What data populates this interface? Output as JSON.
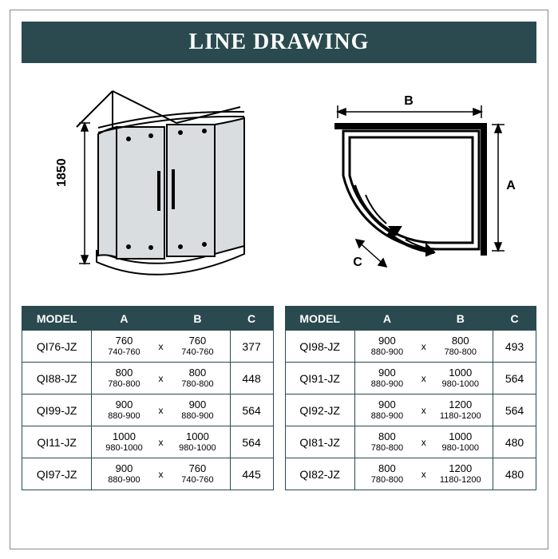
{
  "title": "LINE DRAWING",
  "title_bg": "#2a4a4f",
  "title_color": "#ffffff",
  "title_fontsize": 28,
  "header_bg": "#2a4a4f",
  "header_color": "#ffffff",
  "border_color": "#2a4a4f",
  "height_label": "1850",
  "plan_labels": {
    "A": "A",
    "B": "B",
    "C": "C"
  },
  "columns": [
    "MODEL",
    "A",
    "B",
    "C"
  ],
  "table_left": [
    {
      "model": "QI76-JZ",
      "a_main": "760",
      "a_range": "740-760",
      "b_main": "760",
      "b_range": "740-760",
      "c": "377"
    },
    {
      "model": "QI88-JZ",
      "a_main": "800",
      "a_range": "780-800",
      "b_main": "800",
      "b_range": "780-800",
      "c": "448"
    },
    {
      "model": "QI99-JZ",
      "a_main": "900",
      "a_range": "880-900",
      "b_main": "900",
      "b_range": "880-900",
      "c": "564"
    },
    {
      "model": "QI11-JZ",
      "a_main": "1000",
      "a_range": "980-1000",
      "b_main": "1000",
      "b_range": "980-1000",
      "c": "564"
    },
    {
      "model": "QI97-JZ",
      "a_main": "900",
      "a_range": "880-900",
      "b_main": "760",
      "b_range": "740-760",
      "c": "445"
    }
  ],
  "table_right": [
    {
      "model": "QI98-JZ",
      "a_main": "900",
      "a_range": "880-900",
      "b_main": "800",
      "b_range": "780-800",
      "c": "493"
    },
    {
      "model": "QI91-JZ",
      "a_main": "900",
      "a_range": "880-900",
      "b_main": "1000",
      "b_range": "980-1000",
      "c": "564"
    },
    {
      "model": "QI92-JZ",
      "a_main": "900",
      "a_range": "880-900",
      "b_main": "1200",
      "b_range": "1180-1200",
      "c": "564"
    },
    {
      "model": "QI81-JZ",
      "a_main": "800",
      "a_range": "780-800",
      "b_main": "1000",
      "b_range": "980-1000",
      "c": "480"
    },
    {
      "model": "QI82-JZ",
      "a_main": "800",
      "a_range": "780-800",
      "b_main": "1200",
      "b_range": "1180-1200",
      "c": "480"
    }
  ],
  "x_separator": "x"
}
